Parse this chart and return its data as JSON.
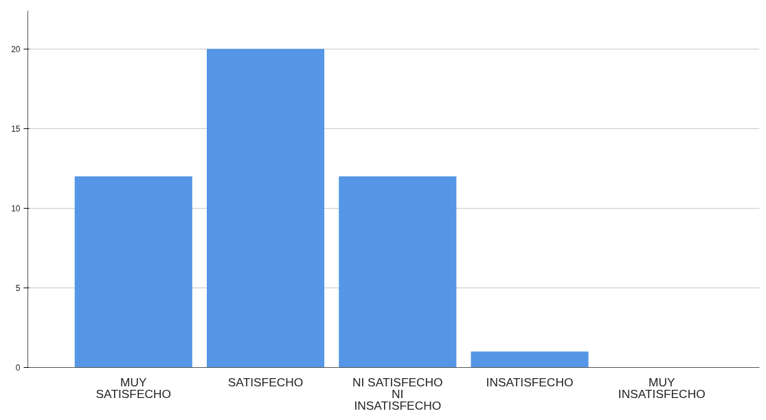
{
  "chart_data": {
    "type": "bar",
    "categories": [
      "MUY\nSATISFECHO",
      "SATISFECHO",
      "NI SATISFECHO\nNI\nINSATISFECHO",
      "INSATISFECHO",
      "MUY\nINSATISFECHO"
    ],
    "values": [
      12,
      20,
      12,
      1,
      0
    ],
    "color": "#5596e6",
    "ylim": [
      0,
      22.4
    ],
    "yticks": [
      0,
      5,
      10,
      15,
      20
    ],
    "grid": "y"
  }
}
